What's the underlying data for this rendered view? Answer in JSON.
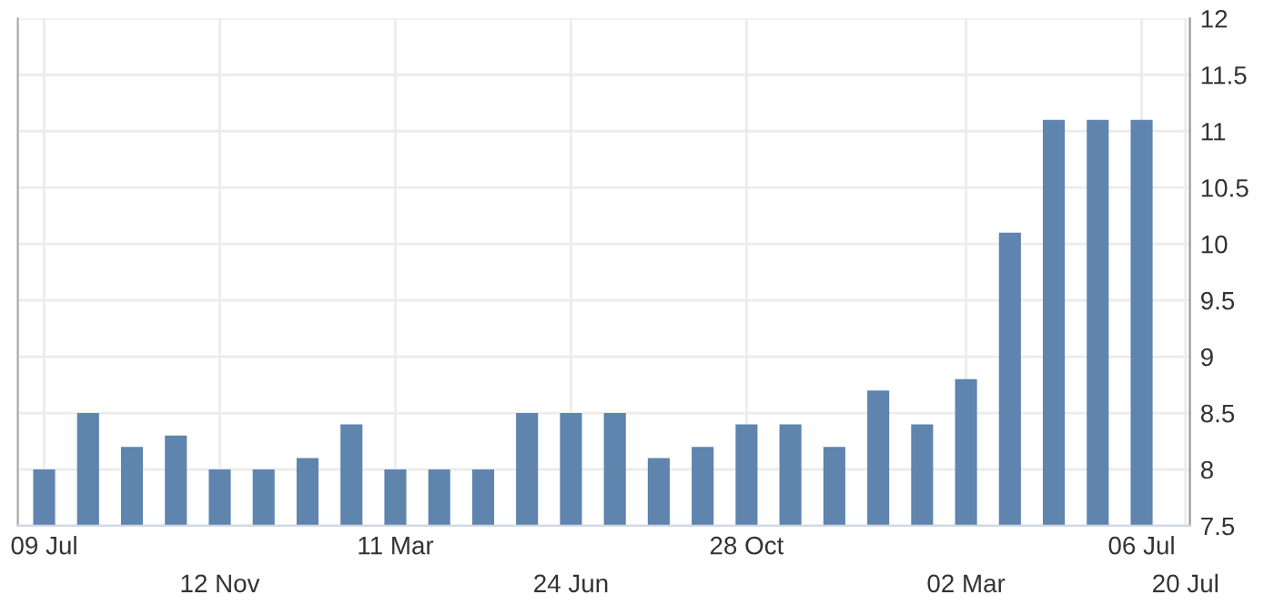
{
  "chart_data": {
    "type": "bar",
    "color": "#5f84ae",
    "categories": [
      "09 Jul",
      null,
      null,
      null,
      "12 Nov",
      null,
      null,
      null,
      "11 Mar",
      null,
      null,
      null,
      "24 Jun",
      null,
      null,
      null,
      "28 Oct",
      null,
      null,
      null,
      null,
      "02 Mar",
      null,
      null,
      null,
      "06 Jul",
      "20 Jul"
    ],
    "values": [
      8,
      8.5,
      8.2,
      8.3,
      8,
      8,
      8.1,
      8.4,
      8,
      8,
      8,
      8.5,
      8.5,
      8.5,
      8.1,
      8.2,
      8.4,
      8.4,
      8.2,
      8.7,
      8.4,
      8.8,
      10.1,
      11.1,
      11.1,
      11.1,
      null
    ],
    "ylim": [
      7.5,
      12
    ],
    "yticks": [
      7.5,
      8,
      8.5,
      9,
      9.5,
      10,
      10.5,
      11,
      11.5,
      12
    ],
    "grid": true
  }
}
